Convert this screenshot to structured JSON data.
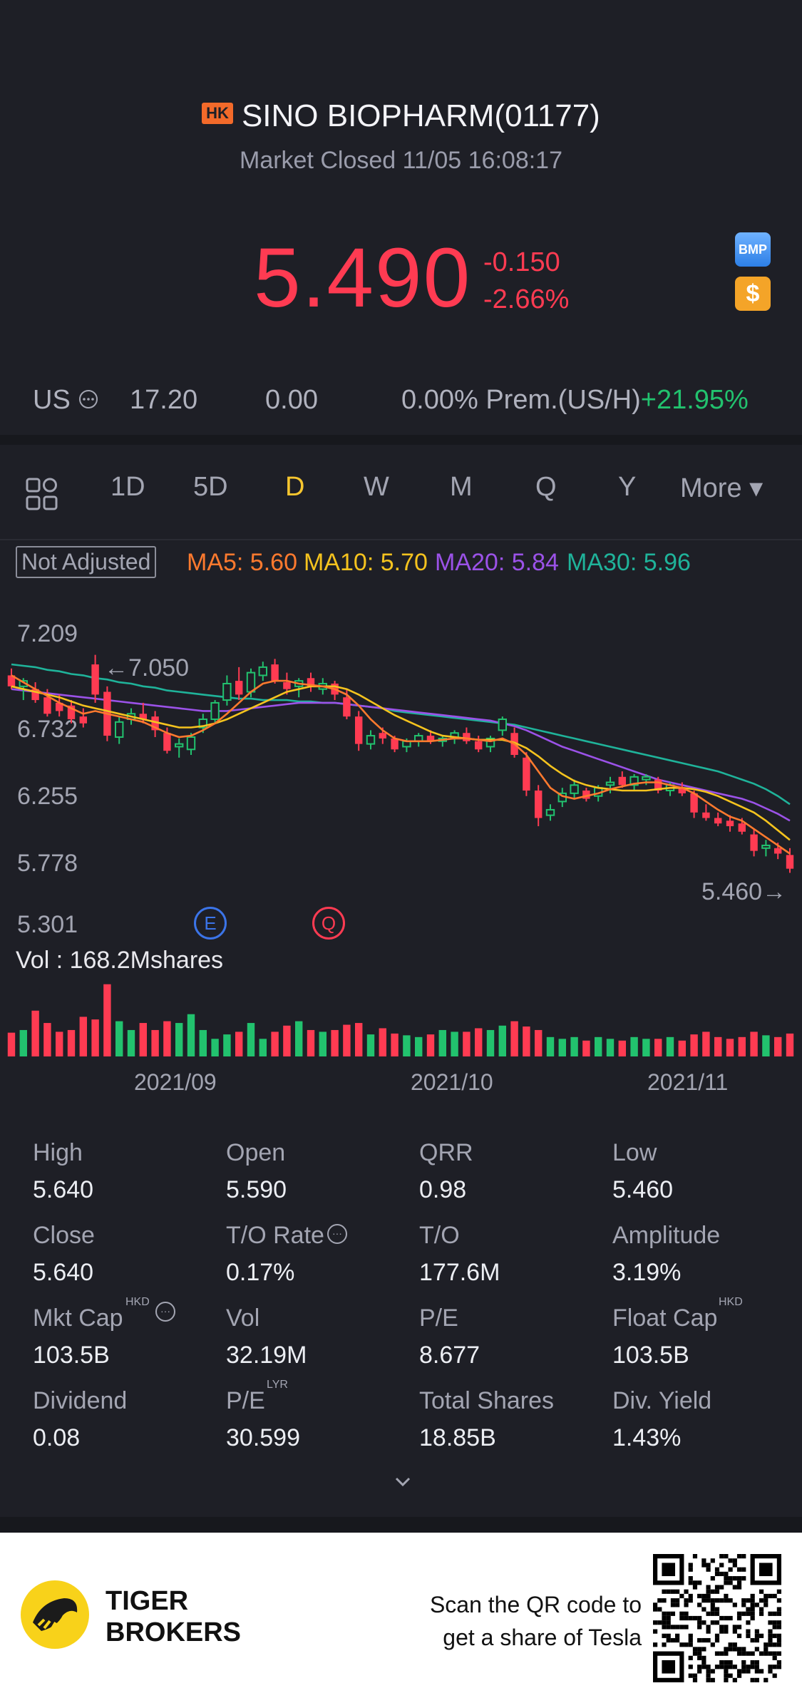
{
  "header": {
    "exchange_badge": "HK",
    "title": "SINO BIOPHARM(01177)",
    "status": "Market Closed 11/05 16:08:17"
  },
  "quote": {
    "price": "5.490",
    "change": "-0.150",
    "change_pct": "-2.66%",
    "bmp_label": "BMP",
    "dollar_label": "$"
  },
  "us_row": {
    "label": "US",
    "price": "17.20",
    "change": "0.00",
    "change_pct": "0.00%",
    "prem_label": "Prem.(US/H)",
    "prem_value": "+21.95%"
  },
  "tabs": [
    "1D",
    "5D",
    "D",
    "W",
    "M",
    "Q",
    "Y",
    "More ▾"
  ],
  "active_tab": "D",
  "ma_row": {
    "not_adjusted": "Not Adjusted",
    "ma5": "MA5: 5.60",
    "ma10": "MA10: 5.70",
    "ma20": "MA20: 5.84",
    "ma30": "MA30: 5.96"
  },
  "colors": {
    "up": "#22c26e",
    "down": "#ff3b52",
    "ma5": "#ff7a2e",
    "ma10": "#f5c31e",
    "ma20": "#9b52e8",
    "ma30": "#1fb39a",
    "active_tab": "#f7c62f"
  },
  "chart_data": {
    "type": "candlestick",
    "y_ticks": [
      "7.209",
      "6.732",
      "6.255",
      "5.778",
      "5.301"
    ],
    "ylim": [
      5.301,
      7.209
    ],
    "high_marker": "7.050",
    "low_marker": "5.460",
    "event_markers": [
      "E",
      "Q"
    ],
    "volume_label": "Vol  : 168.2Mshares",
    "x_labels": [
      "2021/09",
      "2021/10",
      "2021/11"
    ],
    "candles": [
      {
        "o": 6.9,
        "h": 6.95,
        "l": 6.8,
        "c": 6.82
      },
      {
        "o": 6.82,
        "h": 6.88,
        "l": 6.72,
        "c": 6.86
      },
      {
        "o": 6.8,
        "h": 6.85,
        "l": 6.7,
        "c": 6.72
      },
      {
        "o": 6.74,
        "h": 6.8,
        "l": 6.6,
        "c": 6.62
      },
      {
        "o": 6.7,
        "h": 6.76,
        "l": 6.6,
        "c": 6.64
      },
      {
        "o": 6.68,
        "h": 6.72,
        "l": 6.55,
        "c": 6.58
      },
      {
        "o": 6.6,
        "h": 6.66,
        "l": 6.52,
        "c": 6.55
      },
      {
        "o": 6.98,
        "h": 7.05,
        "l": 6.7,
        "c": 6.76
      },
      {
        "o": 6.78,
        "h": 6.82,
        "l": 6.42,
        "c": 6.46
      },
      {
        "o": 6.45,
        "h": 6.6,
        "l": 6.4,
        "c": 6.56
      },
      {
        "o": 6.58,
        "h": 6.66,
        "l": 6.54,
        "c": 6.62
      },
      {
        "o": 6.62,
        "h": 6.7,
        "l": 6.55,
        "c": 6.58
      },
      {
        "o": 6.6,
        "h": 6.64,
        "l": 6.45,
        "c": 6.5
      },
      {
        "o": 6.48,
        "h": 6.52,
        "l": 6.33,
        "c": 6.35
      },
      {
        "o": 6.38,
        "h": 6.44,
        "l": 6.3,
        "c": 6.4
      },
      {
        "o": 6.36,
        "h": 6.48,
        "l": 6.32,
        "c": 6.45
      },
      {
        "o": 6.52,
        "h": 6.62,
        "l": 6.48,
        "c": 6.58
      },
      {
        "o": 6.58,
        "h": 6.72,
        "l": 6.55,
        "c": 6.7
      },
      {
        "o": 6.72,
        "h": 6.9,
        "l": 6.68,
        "c": 6.84
      },
      {
        "o": 6.86,
        "h": 6.96,
        "l": 6.72,
        "c": 6.76
      },
      {
        "o": 6.78,
        "h": 6.95,
        "l": 6.74,
        "c": 6.92
      },
      {
        "o": 6.9,
        "h": 7.0,
        "l": 6.86,
        "c": 6.96
      },
      {
        "o": 6.98,
        "h": 7.02,
        "l": 6.84,
        "c": 6.86
      },
      {
        "o": 6.85,
        "h": 6.92,
        "l": 6.76,
        "c": 6.8
      },
      {
        "o": 6.82,
        "h": 6.88,
        "l": 6.74,
        "c": 6.86
      },
      {
        "o": 6.88,
        "h": 6.92,
        "l": 6.78,
        "c": 6.82
      },
      {
        "o": 6.8,
        "h": 6.88,
        "l": 6.76,
        "c": 6.84
      },
      {
        "o": 6.84,
        "h": 6.86,
        "l": 6.72,
        "c": 6.76
      },
      {
        "o": 6.74,
        "h": 6.8,
        "l": 6.58,
        "c": 6.6
      },
      {
        "o": 6.6,
        "h": 6.64,
        "l": 6.35,
        "c": 6.4
      },
      {
        "o": 6.4,
        "h": 6.5,
        "l": 6.36,
        "c": 6.46
      },
      {
        "o": 6.48,
        "h": 6.52,
        "l": 6.4,
        "c": 6.44
      },
      {
        "o": 6.44,
        "h": 6.46,
        "l": 6.34,
        "c": 6.36
      },
      {
        "o": 6.38,
        "h": 6.44,
        "l": 6.34,
        "c": 6.42
      },
      {
        "o": 6.42,
        "h": 6.48,
        "l": 6.38,
        "c": 6.46
      },
      {
        "o": 6.46,
        "h": 6.5,
        "l": 6.4,
        "c": 6.42
      },
      {
        "o": 6.42,
        "h": 6.46,
        "l": 6.38,
        "c": 6.44
      },
      {
        "o": 6.44,
        "h": 6.5,
        "l": 6.4,
        "c": 6.48
      },
      {
        "o": 6.48,
        "h": 6.52,
        "l": 6.4,
        "c": 6.42
      },
      {
        "o": 6.42,
        "h": 6.46,
        "l": 6.34,
        "c": 6.36
      },
      {
        "o": 6.38,
        "h": 6.46,
        "l": 6.34,
        "c": 6.44
      },
      {
        "o": 6.5,
        "h": 6.6,
        "l": 6.46,
        "c": 6.58
      },
      {
        "o": 6.48,
        "h": 6.52,
        "l": 6.3,
        "c": 6.32
      },
      {
        "o": 6.3,
        "h": 6.34,
        "l": 6.02,
        "c": 6.06
      },
      {
        "o": 6.06,
        "h": 6.1,
        "l": 5.8,
        "c": 5.86
      },
      {
        "o": 5.88,
        "h": 5.96,
        "l": 5.84,
        "c": 5.92
      },
      {
        "o": 5.98,
        "h": 6.08,
        "l": 5.94,
        "c": 6.04
      },
      {
        "o": 6.04,
        "h": 6.14,
        "l": 6.0,
        "c": 6.1
      },
      {
        "o": 6.06,
        "h": 6.08,
        "l": 5.98,
        "c": 6.0
      },
      {
        "o": 6.02,
        "h": 6.1,
        "l": 5.98,
        "c": 6.08
      },
      {
        "o": 6.1,
        "h": 6.16,
        "l": 6.04,
        "c": 6.12
      },
      {
        "o": 6.16,
        "h": 6.2,
        "l": 6.08,
        "c": 6.1
      },
      {
        "o": 6.1,
        "h": 6.18,
        "l": 6.06,
        "c": 6.16
      },
      {
        "o": 6.14,
        "h": 6.18,
        "l": 6.1,
        "c": 6.16
      },
      {
        "o": 6.14,
        "h": 6.16,
        "l": 6.04,
        "c": 6.06
      },
      {
        "o": 6.06,
        "h": 6.12,
        "l": 6.02,
        "c": 6.1
      },
      {
        "o": 6.08,
        "h": 6.12,
        "l": 6.02,
        "c": 6.04
      },
      {
        "o": 6.04,
        "h": 6.06,
        "l": 5.86,
        "c": 5.9
      },
      {
        "o": 5.9,
        "h": 5.96,
        "l": 5.84,
        "c": 5.86
      },
      {
        "o": 5.86,
        "h": 5.9,
        "l": 5.8,
        "c": 5.82
      },
      {
        "o": 5.84,
        "h": 5.88,
        "l": 5.76,
        "c": 5.8
      },
      {
        "o": 5.82,
        "h": 5.86,
        "l": 5.74,
        "c": 5.76
      },
      {
        "o": 5.74,
        "h": 5.78,
        "l": 5.58,
        "c": 5.62
      },
      {
        "o": 5.64,
        "h": 5.7,
        "l": 5.58,
        "c": 5.66
      },
      {
        "o": 5.64,
        "h": 5.68,
        "l": 5.56,
        "c": 5.6
      },
      {
        "o": 5.59,
        "h": 5.64,
        "l": 5.46,
        "c": 5.49
      }
    ],
    "ma5": [
      6.9,
      6.85,
      6.8,
      6.75,
      6.7,
      6.66,
      6.62,
      6.64,
      6.62,
      6.6,
      6.58,
      6.56,
      6.52,
      6.48,
      6.45,
      6.46,
      6.5,
      6.55,
      6.62,
      6.7,
      6.78,
      6.84,
      6.86,
      6.86,
      6.84,
      6.83,
      6.82,
      6.8,
      6.76,
      6.68,
      6.58,
      6.5,
      6.44,
      6.42,
      6.42,
      6.42,
      6.43,
      6.44,
      6.44,
      6.43,
      6.42,
      6.44,
      6.4,
      6.32,
      6.2,
      6.08,
      6.02,
      6.0,
      6.02,
      6.04,
      6.07,
      6.09,
      6.11,
      6.12,
      6.12,
      6.1,
      6.08,
      6.04,
      5.98,
      5.92,
      5.87,
      5.84,
      5.78,
      5.72,
      5.66,
      5.6
    ],
    "ma10": [
      6.82,
      6.8,
      6.78,
      6.76,
      6.74,
      6.71,
      6.68,
      6.66,
      6.64,
      6.62,
      6.6,
      6.58,
      6.56,
      6.54,
      6.52,
      6.52,
      6.53,
      6.55,
      6.58,
      6.62,
      6.66,
      6.7,
      6.74,
      6.78,
      6.8,
      6.82,
      6.82,
      6.82,
      6.8,
      6.76,
      6.71,
      6.66,
      6.61,
      6.57,
      6.53,
      6.49,
      6.46,
      6.45,
      6.44,
      6.43,
      6.43,
      6.43,
      6.41,
      6.37,
      6.31,
      6.24,
      6.18,
      6.13,
      6.1,
      6.08,
      6.07,
      6.06,
      6.06,
      6.06,
      6.07,
      6.08,
      6.08,
      6.07,
      6.05,
      6.02,
      5.98,
      5.94,
      5.9,
      5.84,
      5.77,
      5.7
    ],
    "ma20": [
      6.8,
      6.79,
      6.78,
      6.77,
      6.76,
      6.75,
      6.74,
      6.73,
      6.72,
      6.71,
      6.7,
      6.69,
      6.68,
      6.67,
      6.66,
      6.65,
      6.64,
      6.64,
      6.64,
      6.65,
      6.66,
      6.67,
      6.68,
      6.69,
      6.7,
      6.7,
      6.7,
      6.7,
      6.69,
      6.68,
      6.67,
      6.66,
      6.65,
      6.64,
      6.63,
      6.62,
      6.61,
      6.6,
      6.59,
      6.58,
      6.57,
      6.55,
      6.53,
      6.5,
      6.46,
      6.42,
      6.38,
      6.35,
      6.32,
      6.29,
      6.26,
      6.23,
      6.2,
      6.17,
      6.14,
      6.12,
      6.1,
      6.08,
      6.06,
      6.04,
      6.02,
      6.0,
      5.97,
      5.93,
      5.89,
      5.84
    ],
    "ma30": [
      6.98,
      6.97,
      6.96,
      6.94,
      6.93,
      6.91,
      6.9,
      6.88,
      6.87,
      6.85,
      6.84,
      6.82,
      6.81,
      6.79,
      6.78,
      6.77,
      6.76,
      6.75,
      6.74,
      6.73,
      6.73,
      6.72,
      6.72,
      6.72,
      6.71,
      6.71,
      6.7,
      6.7,
      6.69,
      6.68,
      6.67,
      6.66,
      6.64,
      6.63,
      6.62,
      6.61,
      6.6,
      6.59,
      6.58,
      6.57,
      6.56,
      6.55,
      6.54,
      6.52,
      6.5,
      6.48,
      6.46,
      6.44,
      6.42,
      6.4,
      6.38,
      6.36,
      6.34,
      6.32,
      6.3,
      6.28,
      6.26,
      6.24,
      6.22,
      6.2,
      6.17,
      6.14,
      6.11,
      6.07,
      6.02,
      5.96
    ],
    "volumes": [
      0.27,
      0.3,
      0.52,
      0.38,
      0.28,
      0.3,
      0.45,
      0.42,
      0.82,
      0.4,
      0.3,
      0.38,
      0.3,
      0.4,
      0.38,
      0.48,
      0.3,
      0.2,
      0.25,
      0.28,
      0.38,
      0.2,
      0.28,
      0.35,
      0.4,
      0.3,
      0.28,
      0.3,
      0.36,
      0.38,
      0.25,
      0.32,
      0.26,
      0.24,
      0.22,
      0.25,
      0.3,
      0.28,
      0.28,
      0.32,
      0.3,
      0.35,
      0.4,
      0.34,
      0.3,
      0.22,
      0.2,
      0.22,
      0.18,
      0.22,
      0.2,
      0.18,
      0.22,
      0.2,
      0.2,
      0.22,
      0.18,
      0.25,
      0.28,
      0.22,
      0.2,
      0.22,
      0.28,
      0.24,
      0.22,
      0.26
    ]
  },
  "stats": [
    {
      "label": "High",
      "value": "5.640"
    },
    {
      "label": "Open",
      "value": "5.590"
    },
    {
      "label": "QRR",
      "value": "0.98"
    },
    {
      "label": "Low",
      "value": "5.460"
    },
    {
      "label": "Close",
      "value": "5.640"
    },
    {
      "label": "T/O Rate",
      "value": "0.17%"
    },
    {
      "label": "T/O",
      "value": "177.6M"
    },
    {
      "label": "Amplitude",
      "value": "3.19%"
    },
    {
      "label": "Mkt Cap",
      "value": "103.5B",
      "sup": "HKD"
    },
    {
      "label": "Vol",
      "value": "32.19M"
    },
    {
      "label": "P/E",
      "value": "8.677"
    },
    {
      "label": "Float Cap",
      "value": "103.5B",
      "sup": "HKD"
    },
    {
      "label": "Dividend",
      "value": "0.08"
    },
    {
      "label": "P/E",
      "value": "30.599",
      "sup": "LYR"
    },
    {
      "label": "Total Shares",
      "value": "18.85B"
    },
    {
      "label": "Div. Yield",
      "value": "1.43%"
    }
  ],
  "footer": {
    "brand_line1": "TIGER",
    "brand_line2": "BROKERS",
    "scan_line1": "Scan the QR code to",
    "scan_line2": "get a share of Tesla"
  }
}
